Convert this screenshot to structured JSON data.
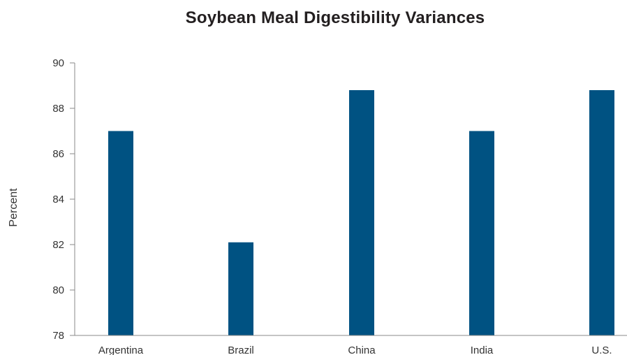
{
  "chart_data": {
    "type": "bar",
    "title": "Soybean Meal Digestibility Variances",
    "xlabel": "",
    "ylabel": "Percent",
    "categories": [
      "Argentina",
      "Brazil",
      "China",
      "India",
      "U.S."
    ],
    "values": [
      87.0,
      82.1,
      88.8,
      87.0,
      88.8
    ],
    "ylim": [
      78,
      90
    ],
    "yticks": [
      90,
      88,
      86,
      84,
      82,
      80,
      78
    ],
    "bar_color": "#005282",
    "axis_color": "#8a8a8a",
    "grid": false,
    "legend": "none"
  }
}
